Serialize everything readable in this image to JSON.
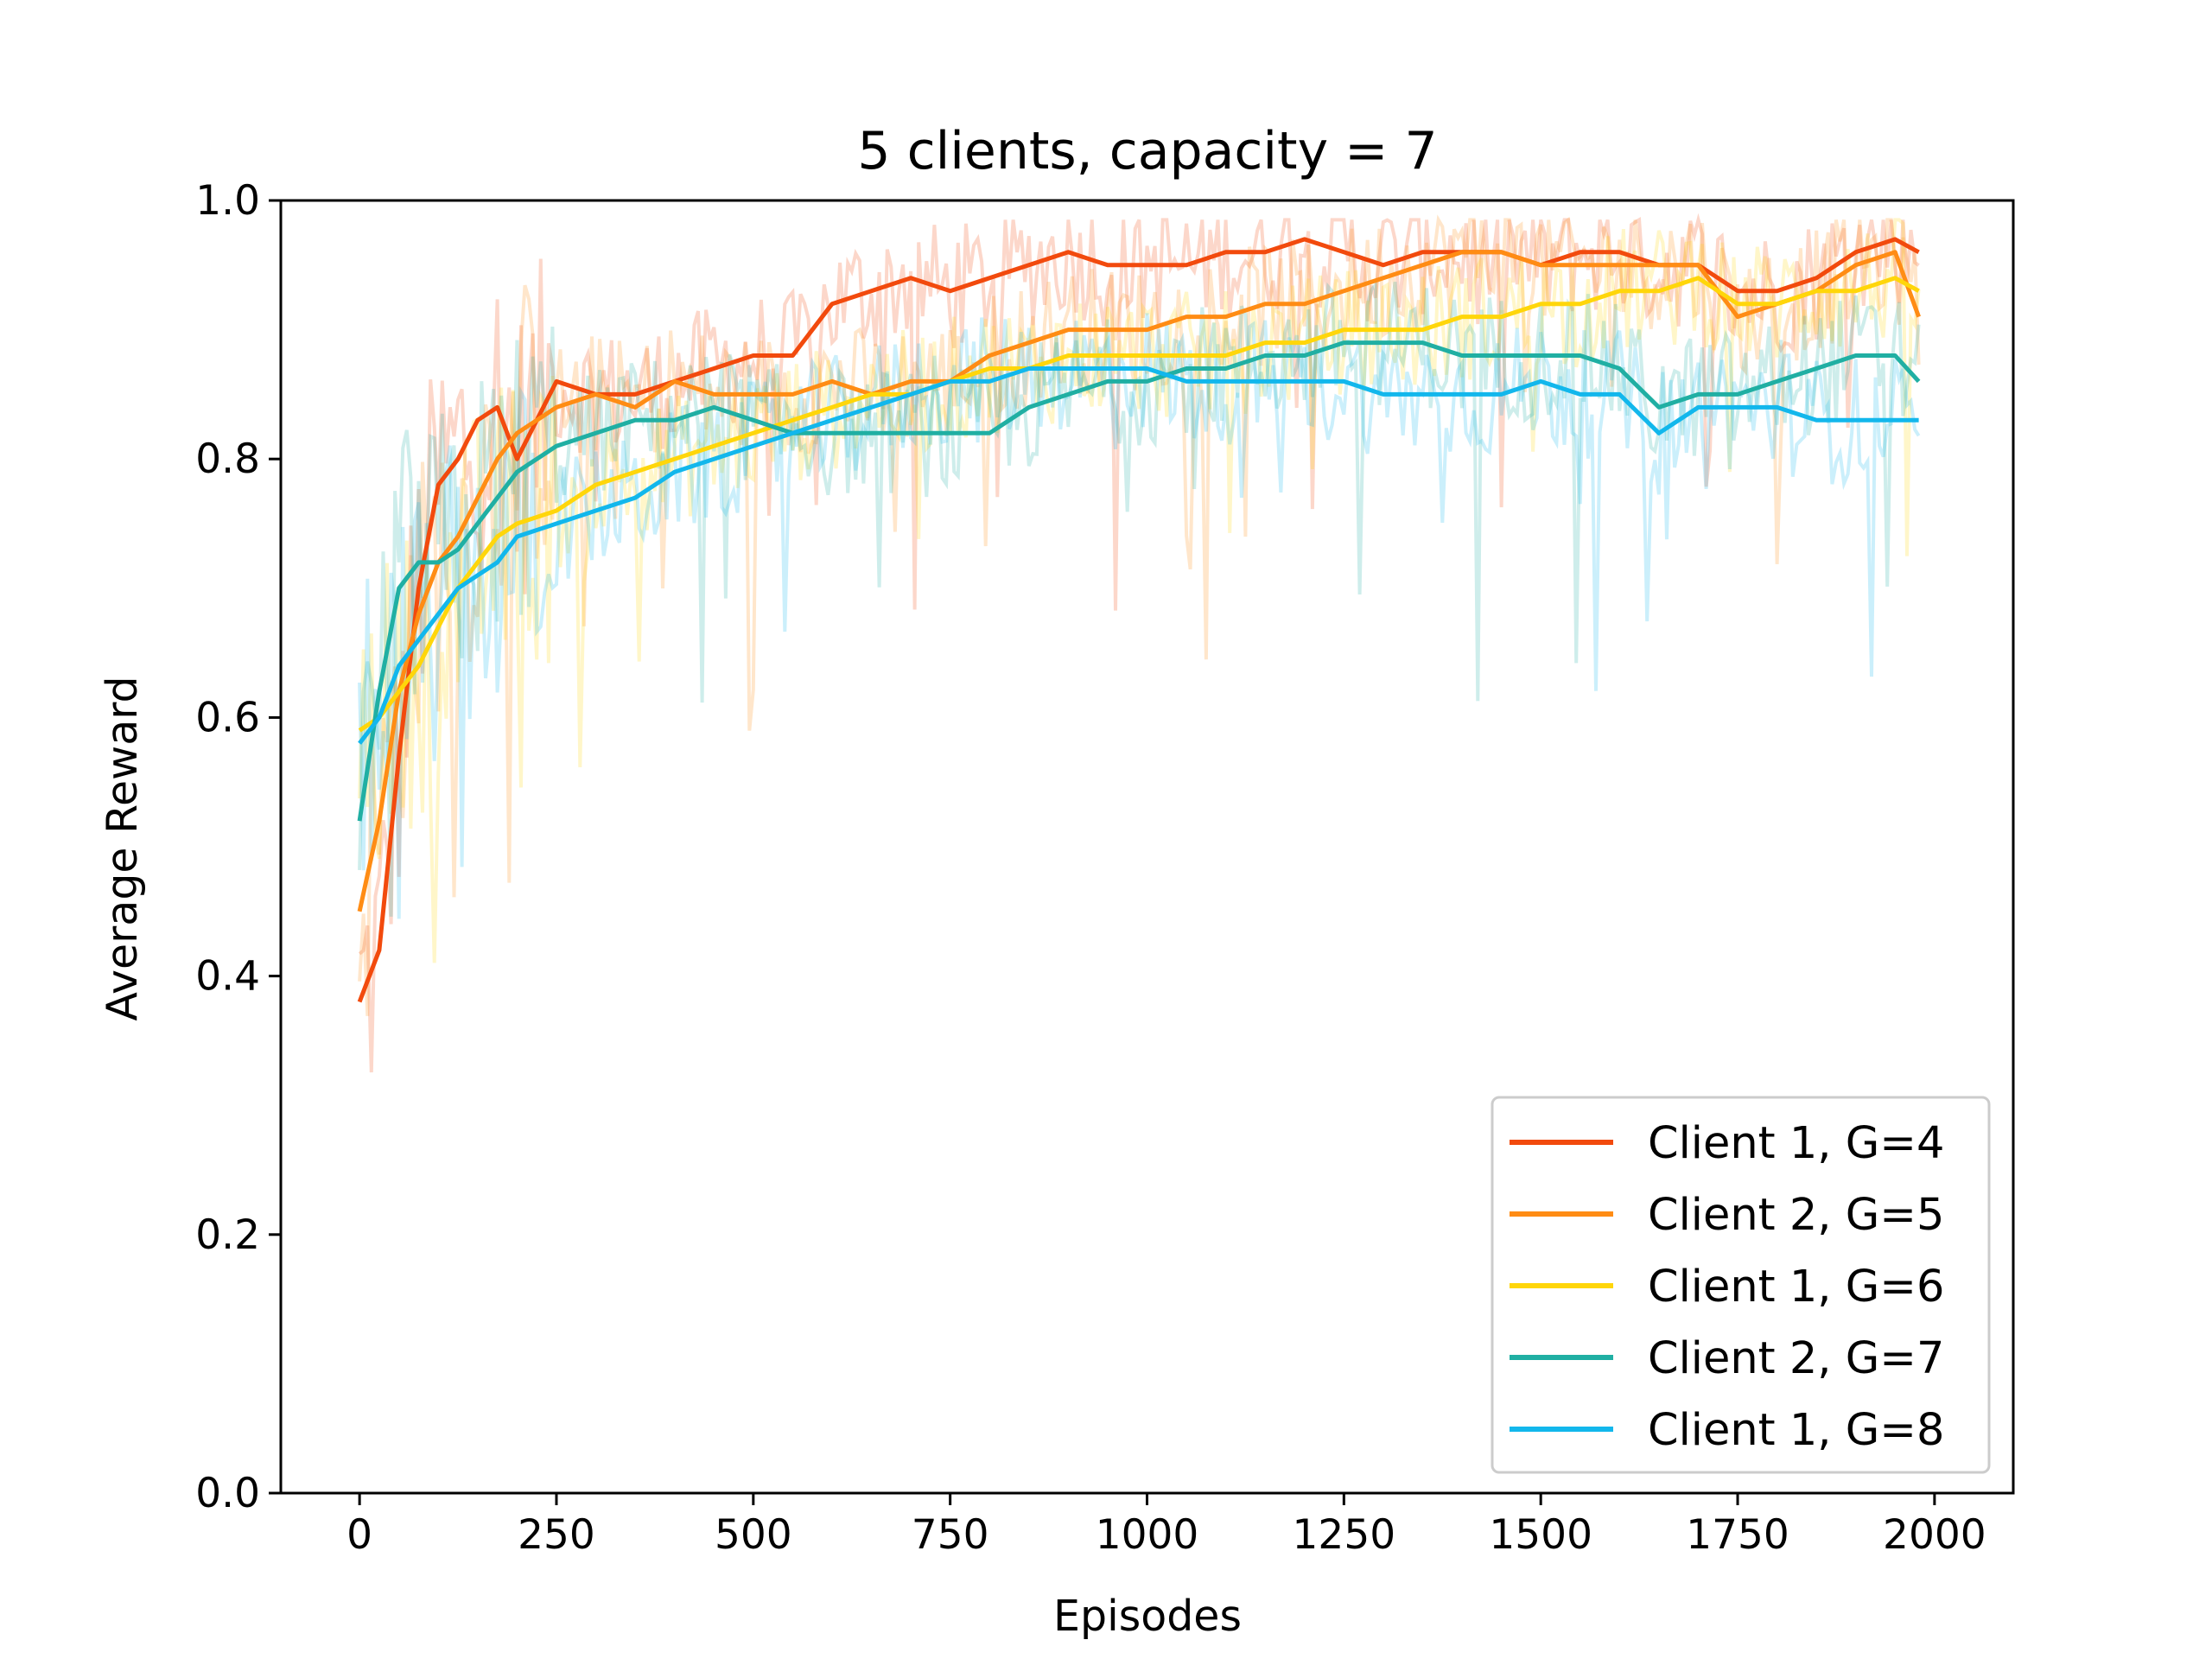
{
  "chart_data": {
    "type": "line",
    "title": "5 clients, capacity = 7",
    "xlabel": "Episodes",
    "ylabel": "Average Reward",
    "xlim": [
      -100,
      2100
    ],
    "ylim": [
      0.0,
      1.0
    ],
    "xticks": [
      0,
      250,
      500,
      750,
      1000,
      1250,
      1500,
      1750,
      2000
    ],
    "xtick_labels": [
      "0",
      "250",
      "500",
      "750",
      "1000",
      "1250",
      "1500",
      "1750",
      "2000"
    ],
    "yticks": [
      0.0,
      0.2,
      0.4,
      0.6,
      0.8,
      1.0
    ],
    "ytick_labels": [
      "0.0",
      "0.2",
      "0.4",
      "0.6",
      "0.8",
      "1.0"
    ],
    "grid": false,
    "legend_position": "lower-right",
    "series": [
      {
        "name": "Client 1, G=4",
        "color": "#F24A0D",
        "x": [
          0,
          25,
          50,
          75,
          100,
          125,
          150,
          175,
          200,
          250,
          300,
          350,
          400,
          450,
          500,
          550,
          600,
          650,
          700,
          750,
          800,
          850,
          900,
          950,
          1000,
          1050,
          1100,
          1150,
          1200,
          1250,
          1300,
          1350,
          1400,
          1450,
          1500,
          1550,
          1600,
          1650,
          1700,
          1750,
          1800,
          1850,
          1900,
          1950,
          1980
        ],
        "values": [
          0.38,
          0.42,
          0.57,
          0.7,
          0.78,
          0.8,
          0.83,
          0.84,
          0.8,
          0.86,
          0.85,
          0.85,
          0.86,
          0.87,
          0.88,
          0.88,
          0.92,
          0.93,
          0.94,
          0.93,
          0.94,
          0.95,
          0.96,
          0.95,
          0.95,
          0.95,
          0.96,
          0.96,
          0.97,
          0.96,
          0.95,
          0.96,
          0.96,
          0.96,
          0.95,
          0.96,
          0.96,
          0.95,
          0.95,
          0.93,
          0.93,
          0.94,
          0.96,
          0.97,
          0.96
        ]
      },
      {
        "name": "Client 2, G=5",
        "color": "#FF8C14",
        "x": [
          0,
          25,
          50,
          75,
          100,
          125,
          150,
          175,
          200,
          250,
          300,
          350,
          400,
          450,
          500,
          550,
          600,
          650,
          700,
          750,
          800,
          850,
          900,
          950,
          1000,
          1050,
          1100,
          1150,
          1200,
          1250,
          1300,
          1350,
          1400,
          1450,
          1500,
          1550,
          1600,
          1650,
          1700,
          1750,
          1800,
          1850,
          1900,
          1950,
          1980
        ],
        "values": [
          0.45,
          0.52,
          0.62,
          0.68,
          0.72,
          0.74,
          0.77,
          0.8,
          0.82,
          0.84,
          0.85,
          0.84,
          0.86,
          0.85,
          0.85,
          0.85,
          0.86,
          0.85,
          0.86,
          0.86,
          0.88,
          0.89,
          0.9,
          0.9,
          0.9,
          0.91,
          0.91,
          0.92,
          0.92,
          0.93,
          0.94,
          0.95,
          0.96,
          0.96,
          0.95,
          0.95,
          0.95,
          0.95,
          0.95,
          0.91,
          0.92,
          0.93,
          0.95,
          0.96,
          0.91
        ]
      },
      {
        "name": "Client 1, G=6",
        "color": "#FFD60A",
        "x": [
          0,
          25,
          50,
          75,
          100,
          125,
          150,
          175,
          200,
          250,
          300,
          350,
          400,
          450,
          500,
          550,
          600,
          650,
          700,
          750,
          800,
          850,
          900,
          950,
          1000,
          1050,
          1100,
          1150,
          1200,
          1250,
          1300,
          1350,
          1400,
          1450,
          1500,
          1550,
          1600,
          1650,
          1700,
          1750,
          1800,
          1850,
          1900,
          1950,
          1980
        ],
        "values": [
          0.59,
          0.6,
          0.62,
          0.64,
          0.67,
          0.7,
          0.72,
          0.74,
          0.75,
          0.76,
          0.78,
          0.79,
          0.8,
          0.81,
          0.82,
          0.83,
          0.84,
          0.85,
          0.85,
          0.86,
          0.87,
          0.87,
          0.88,
          0.88,
          0.88,
          0.88,
          0.88,
          0.89,
          0.89,
          0.9,
          0.9,
          0.9,
          0.91,
          0.91,
          0.92,
          0.92,
          0.93,
          0.93,
          0.94,
          0.92,
          0.92,
          0.93,
          0.93,
          0.94,
          0.93
        ]
      },
      {
        "name": "Client 2, G=7",
        "color": "#20AFA3",
        "x": [
          0,
          25,
          50,
          75,
          100,
          125,
          150,
          175,
          200,
          250,
          300,
          350,
          400,
          450,
          500,
          550,
          600,
          650,
          700,
          750,
          800,
          850,
          900,
          950,
          1000,
          1050,
          1100,
          1150,
          1200,
          1250,
          1300,
          1350,
          1400,
          1450,
          1500,
          1550,
          1600,
          1650,
          1700,
          1750,
          1800,
          1850,
          1900,
          1950,
          1980
        ],
        "values": [
          0.52,
          0.62,
          0.7,
          0.72,
          0.72,
          0.73,
          0.75,
          0.77,
          0.79,
          0.81,
          0.82,
          0.83,
          0.83,
          0.84,
          0.83,
          0.82,
          0.82,
          0.82,
          0.82,
          0.82,
          0.82,
          0.84,
          0.85,
          0.86,
          0.86,
          0.87,
          0.87,
          0.88,
          0.88,
          0.89,
          0.89,
          0.89,
          0.88,
          0.88,
          0.88,
          0.88,
          0.87,
          0.84,
          0.85,
          0.85,
          0.86,
          0.87,
          0.88,
          0.88,
          0.86
        ]
      },
      {
        "name": "Client 1, G=8",
        "color": "#12B7EC",
        "x": [
          0,
          25,
          50,
          75,
          100,
          125,
          150,
          175,
          200,
          250,
          300,
          350,
          400,
          450,
          500,
          550,
          600,
          650,
          700,
          750,
          800,
          850,
          900,
          950,
          1000,
          1050,
          1100,
          1150,
          1200,
          1250,
          1300,
          1350,
          1400,
          1450,
          1500,
          1550,
          1600,
          1650,
          1700,
          1750,
          1800,
          1850,
          1900,
          1950,
          1980
        ],
        "values": [
          0.58,
          0.6,
          0.64,
          0.66,
          0.68,
          0.7,
          0.71,
          0.72,
          0.74,
          0.75,
          0.76,
          0.77,
          0.79,
          0.8,
          0.81,
          0.82,
          0.83,
          0.84,
          0.85,
          0.86,
          0.86,
          0.87,
          0.87,
          0.87,
          0.87,
          0.86,
          0.86,
          0.86,
          0.86,
          0.86,
          0.85,
          0.85,
          0.85,
          0.85,
          0.86,
          0.85,
          0.85,
          0.82,
          0.84,
          0.84,
          0.84,
          0.83,
          0.83,
          0.83,
          0.83
        ]
      }
    ]
  }
}
